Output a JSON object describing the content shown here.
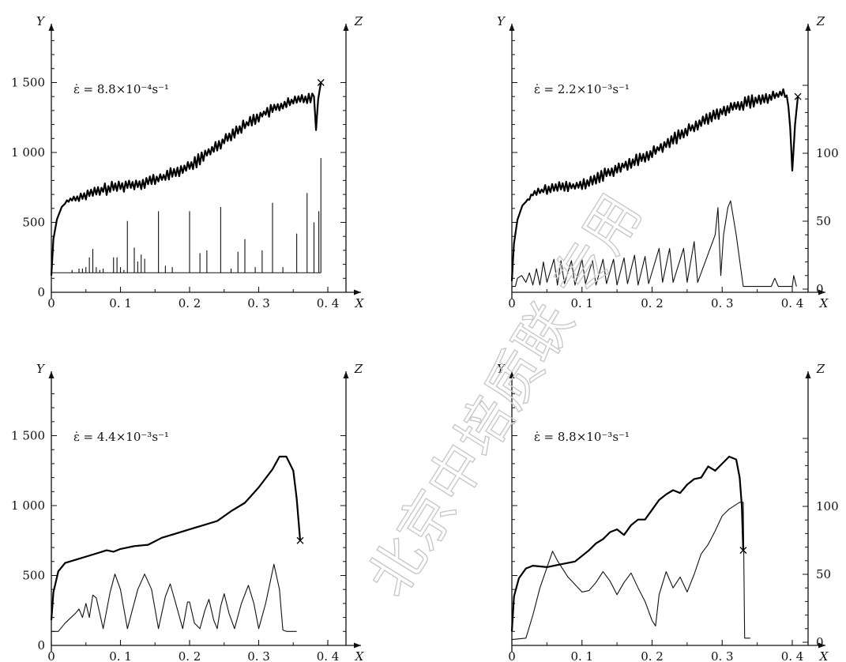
{
  "watermark": "北京中培质联 专用",
  "chart_data": [
    {
      "type": "line",
      "annotation": "ε̇ = 8.8×10⁻⁴s⁻¹",
      "xlabel": "X",
      "ylabel": "Y",
      "zlabel": "Z",
      "xlim": [
        0,
        0.4
      ],
      "ylim": [
        0,
        1900
      ],
      "xticks": [
        0,
        0.1,
        0.2,
        0.3,
        0.4
      ],
      "xtick_labels": [
        "0",
        "0. 1",
        "0. 2",
        "0. 3",
        "0. 4"
      ],
      "yticks": [
        0,
        500,
        1000,
        1500
      ],
      "ytick_labels": [
        "0",
        "500",
        "1 000",
        "1 500"
      ],
      "zticks": [],
      "ztick_labels": [],
      "fracture": {
        "x": 0.39,
        "y": 1500
      },
      "stress": {
        "name": "",
        "noise": 45,
        "points": [
          [
            0,
            120
          ],
          [
            0.003,
            380
          ],
          [
            0.008,
            520
          ],
          [
            0.015,
            610
          ],
          [
            0.025,
            660
          ],
          [
            0.04,
            680
          ],
          [
            0.06,
            710
          ],
          [
            0.08,
            740
          ],
          [
            0.1,
            760
          ],
          [
            0.13,
            780
          ],
          [
            0.16,
            820
          ],
          [
            0.2,
            900
          ],
          [
            0.23,
            1010
          ],
          [
            0.26,
            1130
          ],
          [
            0.3,
            1260
          ],
          [
            0.33,
            1330
          ],
          [
            0.36,
            1380
          ],
          [
            0.38,
            1400
          ],
          [
            0.383,
            1160
          ],
          [
            0.386,
            1380
          ],
          [
            0.39,
            1500
          ]
        ]
      },
      "events": {
        "baseline": 140,
        "spikes": [
          [
            0.03,
            160
          ],
          [
            0.04,
            170
          ],
          [
            0.045,
            170
          ],
          [
            0.05,
            180
          ],
          [
            0.055,
            250
          ],
          [
            0.06,
            310
          ],
          [
            0.065,
            180
          ],
          [
            0.07,
            160
          ],
          [
            0.075,
            170
          ],
          [
            0.09,
            250
          ],
          [
            0.095,
            250
          ],
          [
            0.1,
            180
          ],
          [
            0.105,
            160
          ],
          [
            0.11,
            510
          ],
          [
            0.12,
            320
          ],
          [
            0.125,
            220
          ],
          [
            0.13,
            270
          ],
          [
            0.135,
            240
          ],
          [
            0.155,
            580
          ],
          [
            0.165,
            190
          ],
          [
            0.175,
            180
          ],
          [
            0.2,
            580
          ],
          [
            0.215,
            280
          ],
          [
            0.225,
            300
          ],
          [
            0.245,
            610
          ],
          [
            0.26,
            170
          ],
          [
            0.27,
            290
          ],
          [
            0.28,
            380
          ],
          [
            0.295,
            180
          ],
          [
            0.305,
            300
          ],
          [
            0.32,
            640
          ],
          [
            0.335,
            180
          ],
          [
            0.355,
            420
          ],
          [
            0.37,
            710
          ],
          [
            0.38,
            500
          ],
          [
            0.387,
            580
          ],
          [
            0.39,
            960
          ]
        ]
      }
    },
    {
      "type": "line",
      "annotation": "ε̇ = 2.2×10⁻³s⁻¹",
      "xlabel": "X",
      "ylabel": "Y",
      "zlabel": "Z",
      "xlim": [
        0,
        0.4
      ],
      "ylim": [
        0,
        1900
      ],
      "xticks": [
        0,
        0.1,
        0.2,
        0.3,
        0.4
      ],
      "xtick_labels": [
        "0",
        "0. 1",
        "0. 2",
        "0. 3",
        "0. 4"
      ],
      "yticks": [
        0,
        500,
        1000,
        1500
      ],
      "ytick_labels": [],
      "zticks": [
        0,
        50,
        100
      ],
      "ztick_labels": [
        "0",
        "50",
        "100"
      ],
      "zlim": [
        0,
        160
      ],
      "fracture": {
        "x": 0.408,
        "y": 1400
      },
      "stress": {
        "name": "",
        "noise": 45,
        "points": [
          [
            0,
            80
          ],
          [
            0.003,
            350
          ],
          [
            0.008,
            520
          ],
          [
            0.015,
            620
          ],
          [
            0.03,
            700
          ],
          [
            0.05,
            740
          ],
          [
            0.07,
            750
          ],
          [
            0.09,
            760
          ],
          [
            0.11,
            790
          ],
          [
            0.14,
            860
          ],
          [
            0.17,
            930
          ],
          [
            0.2,
            1000
          ],
          [
            0.23,
            1090
          ],
          [
            0.26,
            1190
          ],
          [
            0.29,
            1270
          ],
          [
            0.32,
            1330
          ],
          [
            0.35,
            1380
          ],
          [
            0.38,
            1410
          ],
          [
            0.392,
            1440
          ],
          [
            0.397,
            1180
          ],
          [
            0.4,
            870
          ],
          [
            0.404,
            1200
          ],
          [
            0.408,
            1400
          ]
        ]
      },
      "events": {
        "baseline": 2,
        "points": [
          [
            0,
            2
          ],
          [
            0.005,
            2
          ],
          [
            0.008,
            8
          ],
          [
            0.014,
            10
          ],
          [
            0.02,
            5
          ],
          [
            0.025,
            12
          ],
          [
            0.03,
            3
          ],
          [
            0.035,
            15
          ],
          [
            0.04,
            3
          ],
          [
            0.045,
            20
          ],
          [
            0.05,
            5
          ],
          [
            0.06,
            22
          ],
          [
            0.065,
            3
          ],
          [
            0.07,
            21
          ],
          [
            0.075,
            4
          ],
          [
            0.085,
            21
          ],
          [
            0.09,
            3
          ],
          [
            0.1,
            22
          ],
          [
            0.105,
            4
          ],
          [
            0.115,
            21
          ],
          [
            0.12,
            3
          ],
          [
            0.13,
            22
          ],
          [
            0.135,
            4
          ],
          [
            0.145,
            22
          ],
          [
            0.15,
            3
          ],
          [
            0.16,
            23
          ],
          [
            0.165,
            4
          ],
          [
            0.175,
            25
          ],
          [
            0.18,
            3
          ],
          [
            0.19,
            24
          ],
          [
            0.195,
            4
          ],
          [
            0.21,
            30
          ],
          [
            0.215,
            5
          ],
          [
            0.225,
            30
          ],
          [
            0.23,
            5
          ],
          [
            0.245,
            30
          ],
          [
            0.25,
            5
          ],
          [
            0.26,
            35
          ],
          [
            0.265,
            5
          ],
          [
            0.29,
            40
          ],
          [
            0.294,
            60
          ],
          [
            0.298,
            10
          ],
          [
            0.302,
            40
          ],
          [
            0.308,
            60
          ],
          [
            0.312,
            65
          ],
          [
            0.32,
            40
          ],
          [
            0.33,
            2
          ],
          [
            0.37,
            2
          ],
          [
            0.375,
            8
          ],
          [
            0.38,
            2
          ],
          [
            0.4,
            2
          ],
          [
            0.402,
            10
          ],
          [
            0.406,
            2
          ]
        ]
      }
    },
    {
      "type": "line",
      "annotation": "ε̇ = 4.4×10⁻³s⁻¹",
      "xlabel": "X",
      "ylabel": "Y",
      "zlabel": "Z",
      "xlim": [
        0,
        0.4
      ],
      "ylim": [
        0,
        1900
      ],
      "xticks": [
        0,
        0.1,
        0.2,
        0.3,
        0.4
      ],
      "xtick_labels": [
        "0",
        "0. 1",
        "0. 2",
        "0. 3",
        "0. 4"
      ],
      "yticks": [
        0,
        500,
        1000,
        1500
      ],
      "ytick_labels": [
        "0",
        "500",
        "1 000",
        "1 500"
      ],
      "zticks": [],
      "ztick_labels": [],
      "fracture": {
        "x": 0.36,
        "y": 750
      },
      "stress": {
        "name": "",
        "noise": 0,
        "points": [
          [
            0,
            180
          ],
          [
            0.003,
            380
          ],
          [
            0.01,
            530
          ],
          [
            0.02,
            590
          ],
          [
            0.04,
            620
          ],
          [
            0.06,
            650
          ],
          [
            0.08,
            680
          ],
          [
            0.09,
            670
          ],
          [
            0.1,
            690
          ],
          [
            0.12,
            710
          ],
          [
            0.14,
            720
          ],
          [
            0.16,
            770
          ],
          [
            0.18,
            800
          ],
          [
            0.2,
            830
          ],
          [
            0.22,
            860
          ],
          [
            0.24,
            890
          ],
          [
            0.26,
            960
          ],
          [
            0.28,
            1020
          ],
          [
            0.3,
            1130
          ],
          [
            0.32,
            1260
          ],
          [
            0.33,
            1350
          ],
          [
            0.34,
            1350
          ],
          [
            0.35,
            1250
          ],
          [
            0.355,
            1050
          ],
          [
            0.36,
            750
          ]
        ]
      },
      "events": {
        "baseline": 100,
        "points": [
          [
            0,
            100
          ],
          [
            0.01,
            100
          ],
          [
            0.02,
            160
          ],
          [
            0.035,
            230
          ],
          [
            0.04,
            260
          ],
          [
            0.045,
            200
          ],
          [
            0.05,
            300
          ],
          [
            0.055,
            200
          ],
          [
            0.06,
            360
          ],
          [
            0.065,
            340
          ],
          [
            0.075,
            120
          ],
          [
            0.085,
            380
          ],
          [
            0.092,
            510
          ],
          [
            0.1,
            400
          ],
          [
            0.11,
            120
          ],
          [
            0.125,
            400
          ],
          [
            0.135,
            510
          ],
          [
            0.145,
            400
          ],
          [
            0.155,
            120
          ],
          [
            0.165,
            350
          ],
          [
            0.172,
            440
          ],
          [
            0.18,
            300
          ],
          [
            0.19,
            120
          ],
          [
            0.197,
            310
          ],
          [
            0.2,
            310
          ],
          [
            0.207,
            160
          ],
          [
            0.215,
            120
          ],
          [
            0.222,
            250
          ],
          [
            0.228,
            330
          ],
          [
            0.235,
            180
          ],
          [
            0.24,
            120
          ],
          [
            0.245,
            280
          ],
          [
            0.25,
            370
          ],
          [
            0.257,
            230
          ],
          [
            0.265,
            120
          ],
          [
            0.275,
            300
          ],
          [
            0.285,
            430
          ],
          [
            0.293,
            300
          ],
          [
            0.3,
            120
          ],
          [
            0.31,
            300
          ],
          [
            0.322,
            580
          ],
          [
            0.33,
            400
          ],
          [
            0.335,
            110
          ],
          [
            0.34,
            100
          ],
          [
            0.355,
            100
          ]
        ]
      }
    },
    {
      "type": "line",
      "annotation": "ε̇ = 8.8×10⁻³s⁻¹",
      "xlabel": "X",
      "ylabel": "Y",
      "zlabel": "Z",
      "xlim": [
        0,
        0.4
      ],
      "ylim": [
        0,
        1900
      ],
      "xticks": [
        0,
        0.1,
        0.2,
        0.3,
        0.4
      ],
      "xtick_labels": [
        "0",
        "0. 1",
        "0. 2",
        "0. 3",
        "0. 4"
      ],
      "yticks": [
        0,
        500,
        1000,
        1500
      ],
      "ytick_labels": [],
      "zticks": [
        0,
        50,
        100
      ],
      "ztick_labels": [
        "0",
        "50",
        "100"
      ],
      "zlim": [
        0,
        160
      ],
      "fracture": {
        "x": 0.33,
        "y": 680
      },
      "stress": {
        "name": "",
        "noise": 0,
        "points": [
          [
            0,
            100
          ],
          [
            0.003,
            350
          ],
          [
            0.01,
            480
          ],
          [
            0.02,
            550
          ],
          [
            0.03,
            570
          ],
          [
            0.05,
            560
          ],
          [
            0.07,
            580
          ],
          [
            0.09,
            600
          ],
          [
            0.1,
            640
          ],
          [
            0.11,
            680
          ],
          [
            0.12,
            730
          ],
          [
            0.13,
            760
          ],
          [
            0.14,
            810
          ],
          [
            0.15,
            830
          ],
          [
            0.16,
            790
          ],
          [
            0.17,
            860
          ],
          [
            0.18,
            900
          ],
          [
            0.19,
            900
          ],
          [
            0.2,
            970
          ],
          [
            0.21,
            1040
          ],
          [
            0.22,
            1080
          ],
          [
            0.23,
            1110
          ],
          [
            0.24,
            1090
          ],
          [
            0.25,
            1150
          ],
          [
            0.26,
            1190
          ],
          [
            0.27,
            1200
          ],
          [
            0.28,
            1280
          ],
          [
            0.29,
            1250
          ],
          [
            0.3,
            1300
          ],
          [
            0.31,
            1350
          ],
          [
            0.32,
            1330
          ],
          [
            0.325,
            1200
          ],
          [
            0.328,
            1000
          ],
          [
            0.33,
            680
          ]
        ]
      },
      "events": {
        "baseline": 2,
        "points": [
          [
            0,
            2
          ],
          [
            0.02,
            3
          ],
          [
            0.03,
            20
          ],
          [
            0.04,
            40
          ],
          [
            0.05,
            55
          ],
          [
            0.058,
            67
          ],
          [
            0.065,
            60
          ],
          [
            0.08,
            48
          ],
          [
            0.1,
            37
          ],
          [
            0.11,
            38
          ],
          [
            0.12,
            44
          ],
          [
            0.13,
            52
          ],
          [
            0.14,
            45
          ],
          [
            0.15,
            35
          ],
          [
            0.16,
            44
          ],
          [
            0.17,
            51
          ],
          [
            0.18,
            40
          ],
          [
            0.19,
            30
          ],
          [
            0.2,
            16
          ],
          [
            0.205,
            12
          ],
          [
            0.21,
            35
          ],
          [
            0.22,
            52
          ],
          [
            0.23,
            40
          ],
          [
            0.24,
            48
          ],
          [
            0.25,
            37
          ],
          [
            0.26,
            50
          ],
          [
            0.27,
            65
          ],
          [
            0.28,
            72
          ],
          [
            0.29,
            82
          ],
          [
            0.3,
            93
          ],
          [
            0.31,
            98
          ],
          [
            0.325,
            103
          ],
          [
            0.33,
            103
          ],
          [
            0.332,
            3
          ],
          [
            0.34,
            3
          ]
        ]
      }
    }
  ]
}
